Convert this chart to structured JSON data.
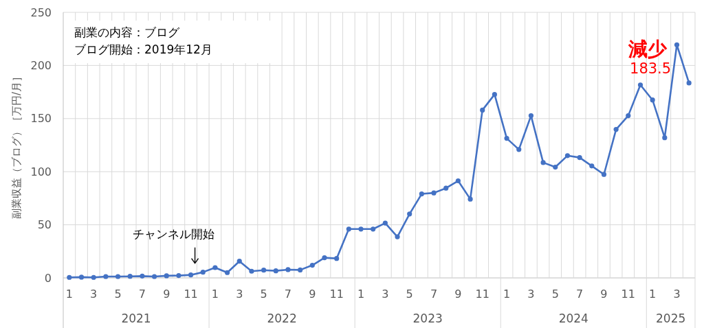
{
  "chart_data": {
    "type": "line",
    "ylabel": "副業収益（ブログ）［万円/月］",
    "categories": [
      "1",
      null,
      "3",
      null,
      "5",
      null,
      "7",
      null,
      "9",
      null,
      "11",
      null,
      "1",
      null,
      "3",
      null,
      "5",
      null,
      "7",
      null,
      "9",
      null,
      "11",
      null,
      "1",
      null,
      "3",
      null,
      "5",
      null,
      "7",
      null,
      "9",
      null,
      "11",
      null,
      "1",
      null,
      "3",
      null,
      "5",
      null,
      "7",
      null,
      "9",
      null,
      "11",
      null,
      "1",
      null,
      "3",
      null
    ],
    "series": [
      {
        "color": "#4472c4",
        "values": [
          0.5,
          0.7,
          0.5,
          1.3,
          1.3,
          1.5,
          1.7,
          1.3,
          2.0,
          2.2,
          2.8,
          5.4,
          9.7,
          5.0,
          15.7,
          6.3,
          7.3,
          6.7,
          7.8,
          7.5,
          11.9,
          19.0,
          18.3,
          46,
          46,
          46,
          51.6,
          38.7,
          60.2,
          79.1,
          80,
          84.5,
          91.4,
          74.2,
          158,
          172.7,
          131.4,
          120.9,
          152.7,
          108.6,
          104.3,
          115.1,
          113.3,
          105.4,
          97.4,
          139.8,
          152.7,
          181.7,
          167.5,
          132,
          219.4,
          183.5
        ],
        "value_labels": [
          null,
          null,
          null,
          null,
          null,
          null,
          null,
          null,
          null,
          null,
          null,
          null,
          null,
          null,
          null,
          null,
          null,
          null,
          null,
          null,
          null,
          null,
          null,
          null,
          null,
          null,
          null,
          null,
          null,
          null,
          null,
          null,
          null,
          null,
          null,
          null,
          null,
          null,
          null,
          null,
          null,
          null,
          null,
          null,
          null,
          null,
          null,
          null,
          null,
          null,
          null,
          "183.5"
        ]
      }
    ],
    "ylim": [
      0,
      250
    ],
    "yticks": [
      0,
      50,
      100,
      150,
      200,
      250
    ],
    "grid": true,
    "marker": "circle",
    "annotations": [
      "副業の内容：ブログ",
      "ブログ開始：2019年12月",
      "チャンネル開始",
      "減少",
      "2021",
      "2022",
      "2023",
      "2024",
      "2025"
    ]
  }
}
